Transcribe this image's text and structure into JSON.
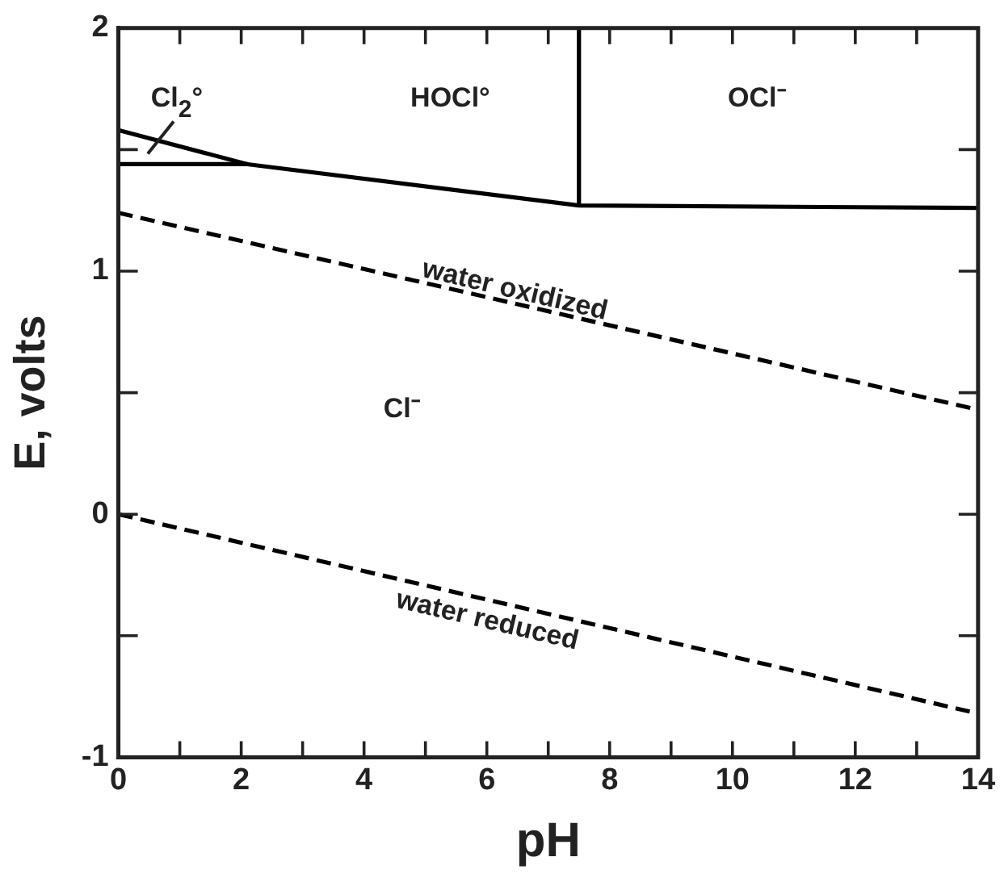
{
  "chart_data": {
    "type": "line",
    "xlabel": "pH",
    "ylabel": "E, volts",
    "xlim": [
      0,
      14
    ],
    "xticks": [
      0,
      {
        "value": 1,
        "label": null
      },
      2,
      {
        "value": 3,
        "label": null
      },
      4,
      {
        "value": 5,
        "label": null
      },
      6,
      {
        "value": 7,
        "label": null
      },
      8,
      {
        "value": 9,
        "label": null
      },
      10,
      {
        "value": 11,
        "label": null
      },
      12,
      {
        "value": 13,
        "label": null
      },
      14
    ],
    "ylim": [
      -1,
      2
    ],
    "yticks": [
      -1,
      {
        "value": -0.5,
        "label": null
      },
      0,
      {
        "value": 0.5,
        "label": null
      },
      1,
      {
        "value": 1.5,
        "label": null
      },
      2
    ],
    "grid": false,
    "legend": false,
    "marker": "none",
    "series": [
      {
        "color": "#000000",
        "x": [
          0,
          2.1
        ],
        "values": [
          1.58,
          1.44
        ],
        "line_style": "solid"
      },
      {
        "color": "#000000",
        "x": [
          0,
          2.1,
          7.5,
          14
        ],
        "values": [
          1.44,
          1.44,
          1.27,
          1.26
        ],
        "line_style": "solid"
      },
      {
        "color": "#000000",
        "x": [
          7.5,
          7.5
        ],
        "values": [
          1.27,
          2
        ],
        "line_style": "solid"
      },
      {
        "color": "#000000",
        "x": [
          0,
          14
        ],
        "values": [
          1.24,
          0.43
        ],
        "line_style": "dashed"
      },
      {
        "color": "#000000",
        "x": [
          0,
          14
        ],
        "values": [
          0,
          -0.82
        ],
        "line_style": "dashed"
      }
    ],
    "annotations": [
      "Cl$_{2}$°",
      "HOCl°",
      "OCl⁻",
      "water oxidized",
      "Cl⁻",
      "water reduced"
    ]
  }
}
